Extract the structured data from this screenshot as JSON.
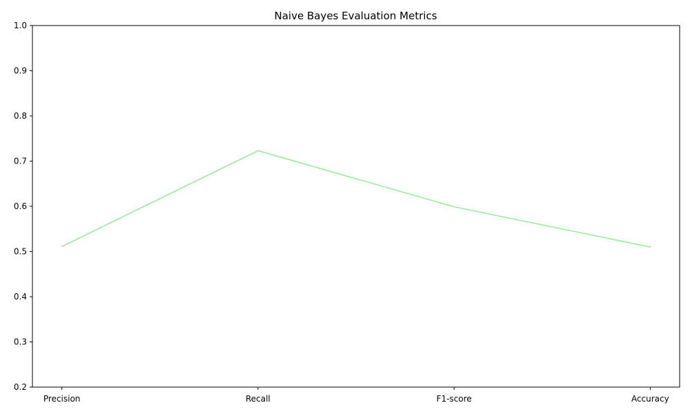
{
  "chart_data": {
    "type": "line",
    "title": "Naive Bayes Evaluation Metrics",
    "xlabel": "",
    "ylabel": "",
    "categories": [
      "Precision",
      "Recall",
      "F1-score",
      "Accuracy"
    ],
    "series": [
      {
        "values": [
          0.511,
          0.723,
          0.599,
          0.51
        ],
        "color": "#90ee90"
      }
    ],
    "ylim": [
      0.2,
      1.0
    ],
    "yticks": [
      "0.2",
      "0.3",
      "0.4",
      "0.5",
      "0.6",
      "0.7",
      "0.8",
      "0.9",
      "1.0"
    ],
    "grid": false,
    "legend": "none"
  }
}
